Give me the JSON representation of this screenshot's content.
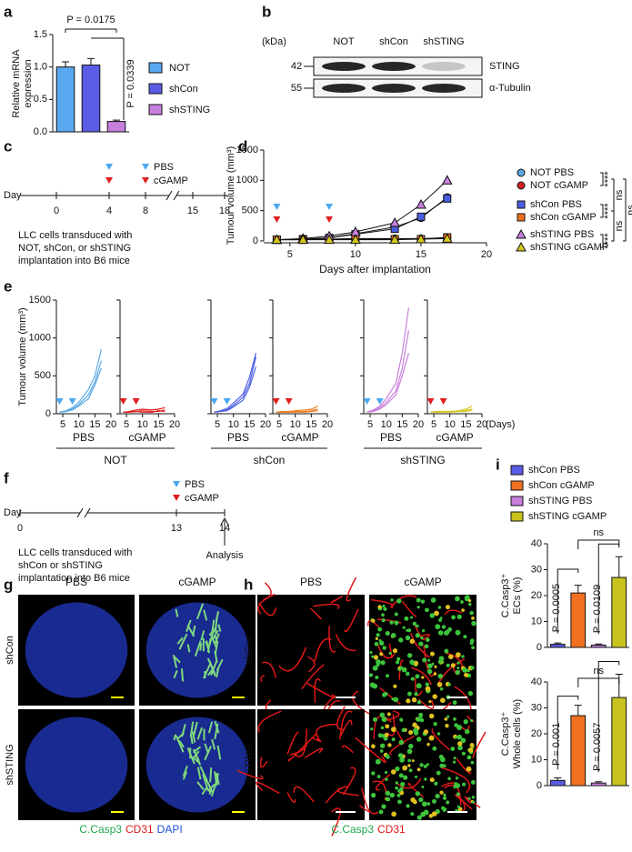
{
  "panel_labels": [
    "a",
    "b",
    "c",
    "d",
    "e",
    "f",
    "g",
    "h",
    "i"
  ],
  "chart_data": [
    {
      "type": "bar",
      "y_label": [
        "Relative mRNA",
        "expression"
      ],
      "categories": [
        "NOT",
        "shCon",
        "shSTING"
      ],
      "values": [
        1.0,
        1.03,
        0.16
      ],
      "errors": [
        0.08,
        0.1,
        0.02
      ],
      "colors": [
        "#5aa9f0",
        "#5b5ce6",
        "#c77fdc"
      ],
      "ylim": [
        0,
        1.5
      ],
      "yticks": [
        {
          "value": 0,
          "label": "0.0"
        },
        0.5,
        {
          "value": 1,
          "label": "1.0"
        },
        1.5
      ],
      "annotations": [
        "P = 0.0175",
        "P = 0.0339"
      ]
    },
    {
      "type": "line",
      "x_label": "Days after implantation",
      "y_label": "Tumour volume (mm³)",
      "x": [
        4,
        6,
        8,
        10,
        13,
        15,
        17
      ],
      "xlim": [
        3,
        20
      ],
      "ylim": [
        0,
        1500
      ],
      "xticks": [
        5,
        10,
        15,
        20
      ],
      "yticks": [
        0,
        500,
        1000,
        1500
      ],
      "series": [
        {
          "name": "NOT PBS",
          "color": "#5aa9e6",
          "marker": "circle",
          "values": [
            20,
            30,
            50,
            120,
            230,
            380,
            720
          ]
        },
        {
          "name": "NOT cGAMP",
          "color": "#d62020",
          "marker": "circle",
          "values": [
            20,
            25,
            30,
            40,
            40,
            40,
            50
          ]
        },
        {
          "name": "shCon PBS",
          "color": "#4b5de0",
          "marker": "square",
          "values": [
            20,
            30,
            50,
            110,
            200,
            400,
            700
          ]
        },
        {
          "name": "shCon cGAMP",
          "color": "#f07020",
          "marker": "square",
          "values": [
            20,
            20,
            25,
            30,
            30,
            30,
            60
          ]
        },
        {
          "name": "shSTING PBS",
          "color": "#c77fdc",
          "marker": "triangle",
          "values": [
            20,
            40,
            80,
            150,
            300,
            600,
            1000
          ]
        },
        {
          "name": "shSTING cGAMP",
          "color": "#d4c81e",
          "marker": "triangle",
          "values": [
            20,
            20,
            20,
            20,
            20,
            30,
            40
          ]
        }
      ],
      "significance": [
        "****",
        "****",
        "****",
        "ns",
        "ns",
        "ns"
      ]
    },
    {
      "type": "small_multiples",
      "y_label": "Tumour volume (mm³)",
      "x": [
        4,
        6,
        8,
        10,
        13,
        15,
        17
      ],
      "xlim": [
        3,
        20
      ],
      "ylim": [
        0,
        1500
      ],
      "xticks": [
        5,
        10,
        15,
        20
      ],
      "yticks": [
        0,
        500,
        1000,
        1500
      ],
      "x_unit": "(Days)",
      "groups": [
        "NOT",
        "shCon",
        "shSTING"
      ],
      "panels": [
        {
          "treatment": "PBS",
          "color": "#5aa9e6",
          "lines": [
            [
              20,
              30,
              60,
              120,
              250,
              420,
              700
            ],
            [
              20,
              40,
              80,
              150,
              320,
              500,
              850
            ],
            [
              20,
              30,
              50,
              100,
              200,
              380,
              600
            ]
          ]
        },
        {
          "treatment": "cGAMP",
          "color": "#e02020",
          "lines": [
            [
              20,
              30,
              50,
              60,
              50,
              60,
              80
            ],
            [
              20,
              20,
              30,
              40,
              30,
              30,
              50
            ],
            [
              20,
              25,
              30,
              20,
              20,
              40,
              30
            ]
          ]
        },
        {
          "treatment": "PBS",
          "color": "#4b5de0",
          "lines": [
            [
              20,
              30,
              50,
              110,
              220,
              400,
              750
            ],
            [
              20,
              40,
              70,
              140,
              260,
              480,
              800
            ],
            [
              20,
              30,
              40,
              90,
              180,
              350,
              620
            ]
          ]
        },
        {
          "treatment": "cGAMP",
          "color": "#f08020",
          "lines": [
            [
              20,
              20,
              20,
              30,
              30,
              40,
              60
            ],
            [
              20,
              30,
              30,
              40,
              50,
              60,
              100
            ],
            [
              20,
              20,
              20,
              20,
              20,
              30,
              40
            ]
          ]
        },
        {
          "treatment": "PBS",
          "color": "#c77fdc",
          "lines": [
            [
              20,
              50,
              100,
              200,
              400,
              800,
              1400
            ],
            [
              20,
              40,
              80,
              150,
              300,
              600,
              1100
            ],
            [
              20,
              30,
              60,
              120,
              250,
              500,
              800
            ]
          ]
        },
        {
          "treatment": "cGAMP",
          "color": "#d4c81e",
          "lines": [
            [
              20,
              20,
              30,
              30,
              40,
              60,
              100
            ],
            [
              20,
              30,
              30,
              30,
              30,
              40,
              60
            ],
            [
              20,
              20,
              20,
              20,
              30,
              30,
              50
            ]
          ]
        }
      ]
    },
    {
      "type": "bar",
      "y_label": [
        "C.Casp3⁺",
        "ECs (%)"
      ],
      "values": [
        1.2,
        21,
        0.9,
        27
      ],
      "errors": [
        0.5,
        3,
        0.4,
        8
      ],
      "colors": [
        "#5b5ce6",
        "#f07020",
        "#c77fdc",
        "#c8c21e"
      ],
      "ylim": [
        0,
        40
      ],
      "yticks": [
        0,
        10,
        20,
        30,
        40
      ],
      "annotations": [
        "P = 0.0005",
        "P = 0.0109",
        "ns"
      ]
    },
    {
      "type": "bar",
      "y_label": [
        "C.Casp3⁺",
        "Whole cells (%)"
      ],
      "values": [
        2,
        27,
        1,
        34
      ],
      "errors": [
        1,
        4,
        0.5,
        9
      ],
      "colors": [
        "#5b5ce6",
        "#f07020",
        "#c77fdc",
        "#c8c21e"
      ],
      "ylim": [
        0,
        40
      ],
      "yticks": [
        0,
        10,
        20,
        30,
        40
      ],
      "annotations": [
        "P = 0.001",
        "P = 0.0057",
        "ns"
      ]
    }
  ],
  "legend_i": [
    "shCon PBS",
    "shCon cGAMP",
    "shSTING PBS",
    "shSTING cGAMP"
  ],
  "blot": {
    "unit": "(kDa)",
    "lanes": [
      "NOT",
      "shCon",
      "shSTING"
    ],
    "rows": [
      {
        "kda": "42",
        "protein": "STING"
      },
      {
        "kda": "55",
        "protein": "α-Tubulin"
      }
    ]
  },
  "timeline_c": {
    "day": "Day",
    "ticks": [
      "0",
      "4",
      "8",
      "15",
      "18"
    ],
    "treatments": [
      "PBS",
      "cGAMP"
    ],
    "note": [
      "LLC cells transduced with",
      "NOT, shCon, or shSTING",
      "implantation into B6 mice"
    ]
  },
  "timeline_f": {
    "day": "Day",
    "ticks": [
      "0",
      "13",
      "14"
    ],
    "treatments": [
      "PBS",
      "cGAMP"
    ],
    "end": "Analysis",
    "note": [
      "LLC cells transduced with",
      "shCon or shSTING",
      "implantation into B6 mice"
    ]
  },
  "images": {
    "columns": [
      "PBS",
      "cGAMP"
    ],
    "rows": [
      "shCon",
      "shSTING"
    ],
    "stains_g": [
      "C.Casp3",
      "CD31",
      "DAPI"
    ],
    "stains_h": [
      "C.Casp3",
      "CD31"
    ]
  }
}
